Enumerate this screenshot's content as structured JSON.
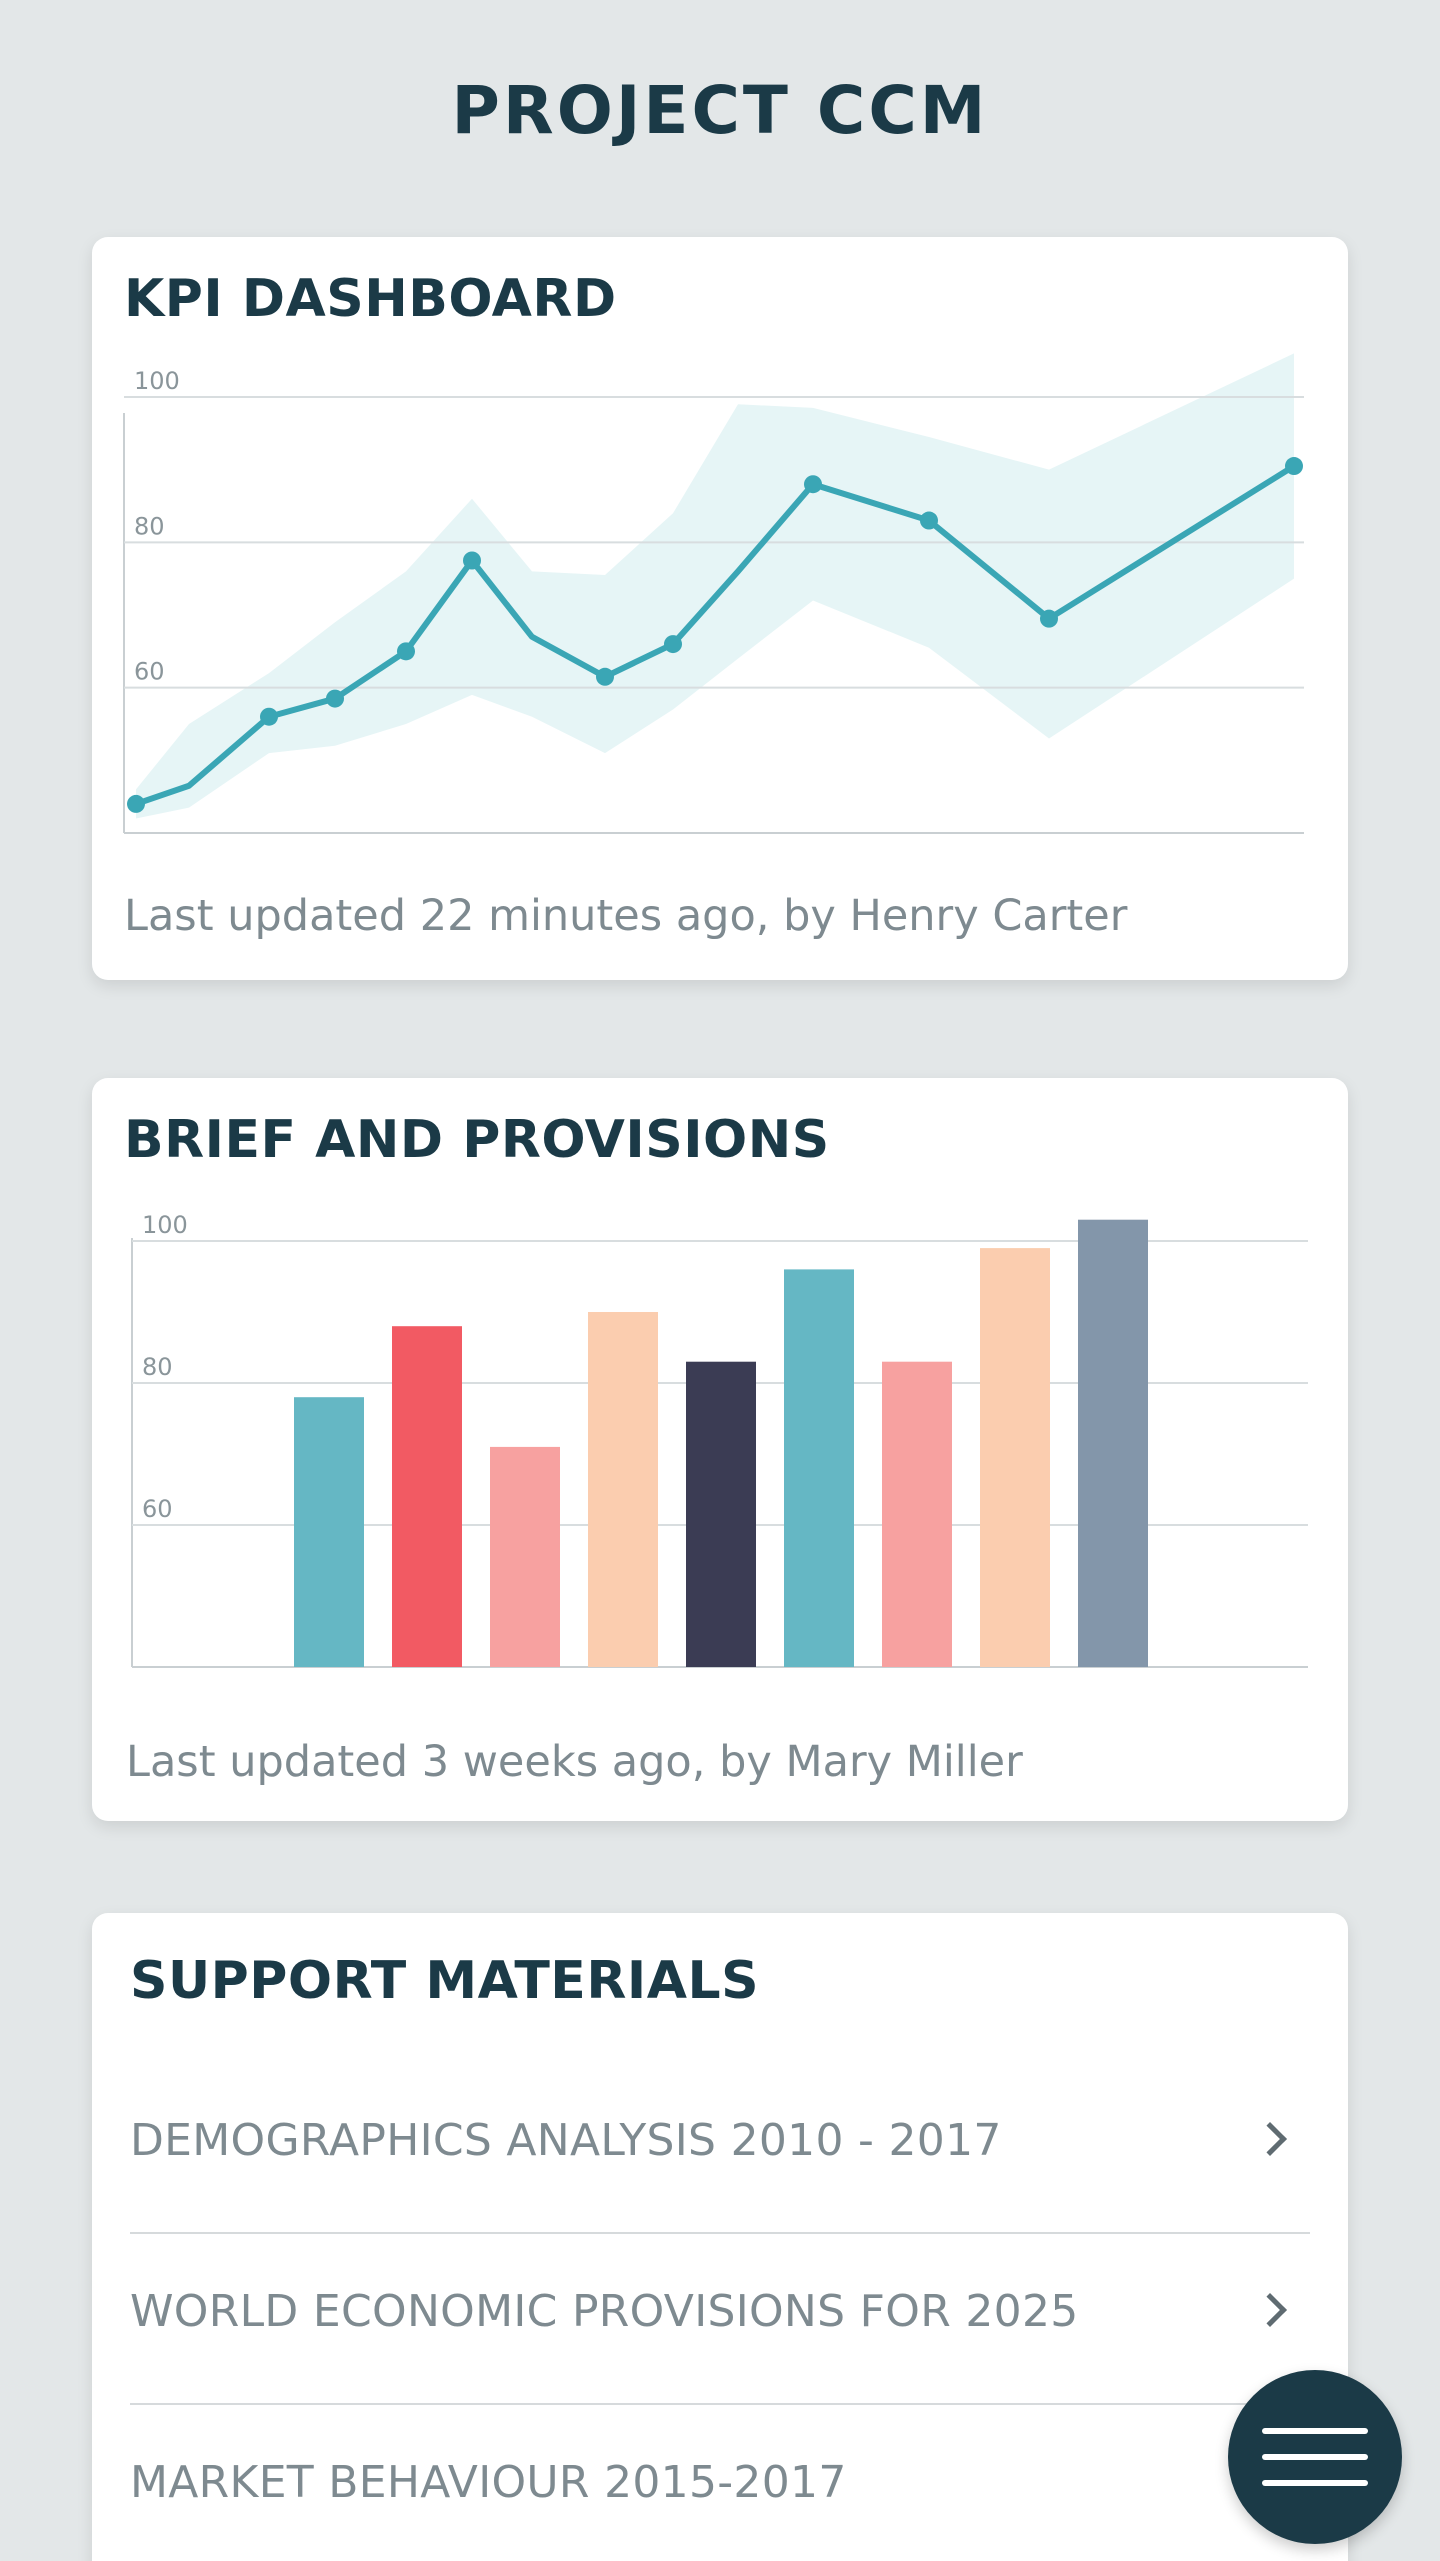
{
  "header": {
    "title": "PROJECT CCM"
  },
  "kpi": {
    "title": "KPI DASHBOARD",
    "footer": "Last updated 22 minutes ago, by Henry Carter",
    "colors": {
      "line": "#3aa6b5",
      "band": "#e6f5f6",
      "grid": "#d8dddf"
    }
  },
  "brief": {
    "title": "BRIEF AND PROVISIONS",
    "footer": "Last updated 3 weeks ago, by Mary Miller",
    "colors": [
      "#65b7c4",
      "#f25a63",
      "#f7a1a0",
      "#fbcdaf",
      "#3b3c54",
      "#65b7c4",
      "#f7a1a0",
      "#fbcdaf",
      "#8396aa"
    ]
  },
  "support": {
    "title": "SUPPORT MATERIALS",
    "items": [
      {
        "label": "DEMOGRAPHICS ANALYSIS 2010 - 2017"
      },
      {
        "label": "WORLD ECONOMIC PROVISIONS FOR 2025"
      },
      {
        "label": "MARKET BEHAVIOUR 2015-2017"
      }
    ]
  },
  "menu": {
    "icon": "hamburger-menu-icon"
  },
  "chart_data": [
    {
      "type": "line",
      "title": "KPI DASHBOARD",
      "xlabel": "",
      "ylabel": "",
      "ylim": [
        40,
        100
      ],
      "yticks": [
        60,
        80,
        100
      ],
      "grid": true,
      "legend": "none",
      "series": [
        {
          "values": [
            44,
            46.5,
            56,
            58.5,
            65,
            77.5,
            67,
            61.5,
            66,
            76,
            88,
            83,
            69.5,
            90.5
          ],
          "markers": [
            true,
            false,
            true,
            true,
            true,
            true,
            false,
            true,
            true,
            false,
            true,
            true,
            true,
            true
          ],
          "band_upper": [
            46,
            55,
            62,
            69,
            76,
            86,
            76,
            75.5,
            84,
            99,
            98.5,
            94.5,
            90,
            106
          ],
          "band_lower": [
            42,
            43.5,
            51,
            52,
            55,
            59,
            56,
            51,
            57,
            64,
            72,
            65.5,
            53,
            75
          ]
        }
      ]
    },
    {
      "type": "bar",
      "title": "BRIEF AND PROVISIONS",
      "xlabel": "",
      "ylabel": "",
      "ylim": [
        40,
        100
      ],
      "yticks": [
        60,
        80,
        100
      ],
      "grid": true,
      "legend": "none",
      "categories": [
        "",
        "",
        "",
        "",
        "",
        "",
        "",
        "",
        ""
      ],
      "values": [
        78,
        88,
        71,
        90,
        83,
        96,
        83,
        99,
        103
      ]
    }
  ]
}
